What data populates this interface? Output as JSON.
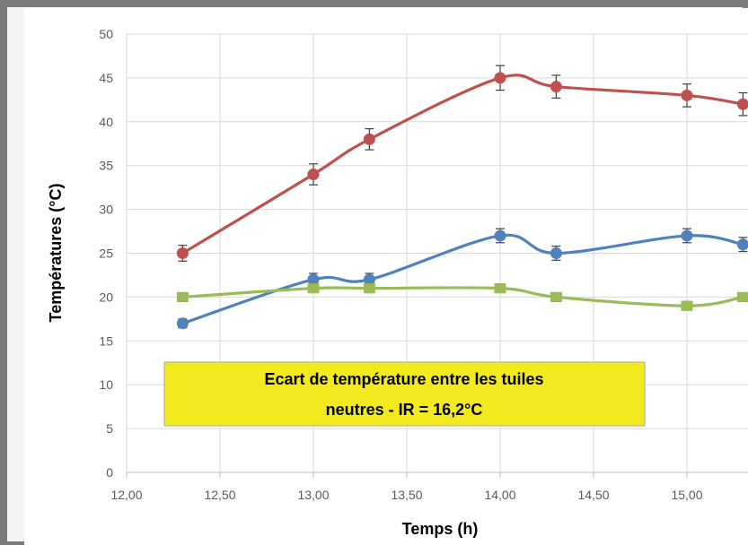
{
  "chart_data": {
    "type": "line",
    "title": "",
    "xlabel": "Temps (h)",
    "ylabel": "Températures  (°C)",
    "xlim": [
      12,
      15.3
    ],
    "ylim": [
      0,
      50
    ],
    "x_ticks": [
      "12,00",
      "12,50",
      "13,00",
      "13,50",
      "14,00",
      "14,50",
      "15,00"
    ],
    "y_ticks": [
      "0",
      "5",
      "10",
      "15",
      "20",
      "25",
      "30",
      "35",
      "40",
      "45",
      "50"
    ],
    "grid": true,
    "legend": "none",
    "smooth": true,
    "error_bars": true,
    "x": [
      12.3,
      13.0,
      13.3,
      14.0,
      14.3,
      15.0,
      15.3
    ],
    "series": [
      {
        "color": "#c0504d",
        "values": [
          25,
          34,
          38,
          45,
          44,
          43,
          42
        ],
        "errors": [
          0.9,
          1.2,
          1.2,
          1.4,
          1.3,
          1.3,
          1.3
        ]
      },
      {
        "color": "#4f81bd",
        "values": [
          17,
          22,
          22,
          27,
          25,
          27,
          26
        ],
        "errors": [
          0.5,
          0.7,
          0.7,
          0.8,
          0.8,
          0.8,
          0.8
        ]
      },
      {
        "color": "#9bbb59",
        "values": [
          20,
          21,
          21,
          21,
          20,
          19,
          20
        ],
        "errors": [
          0.5,
          0.5,
          0.5,
          0.5,
          0.5,
          0.5,
          0.5
        ]
      }
    ],
    "annotation": {
      "line1": "Ecart de température entre les tuiles",
      "line2": "neutres - IR =  16,2°C",
      "background": "#f2ea1f",
      "border": "#a6a6a6"
    }
  }
}
